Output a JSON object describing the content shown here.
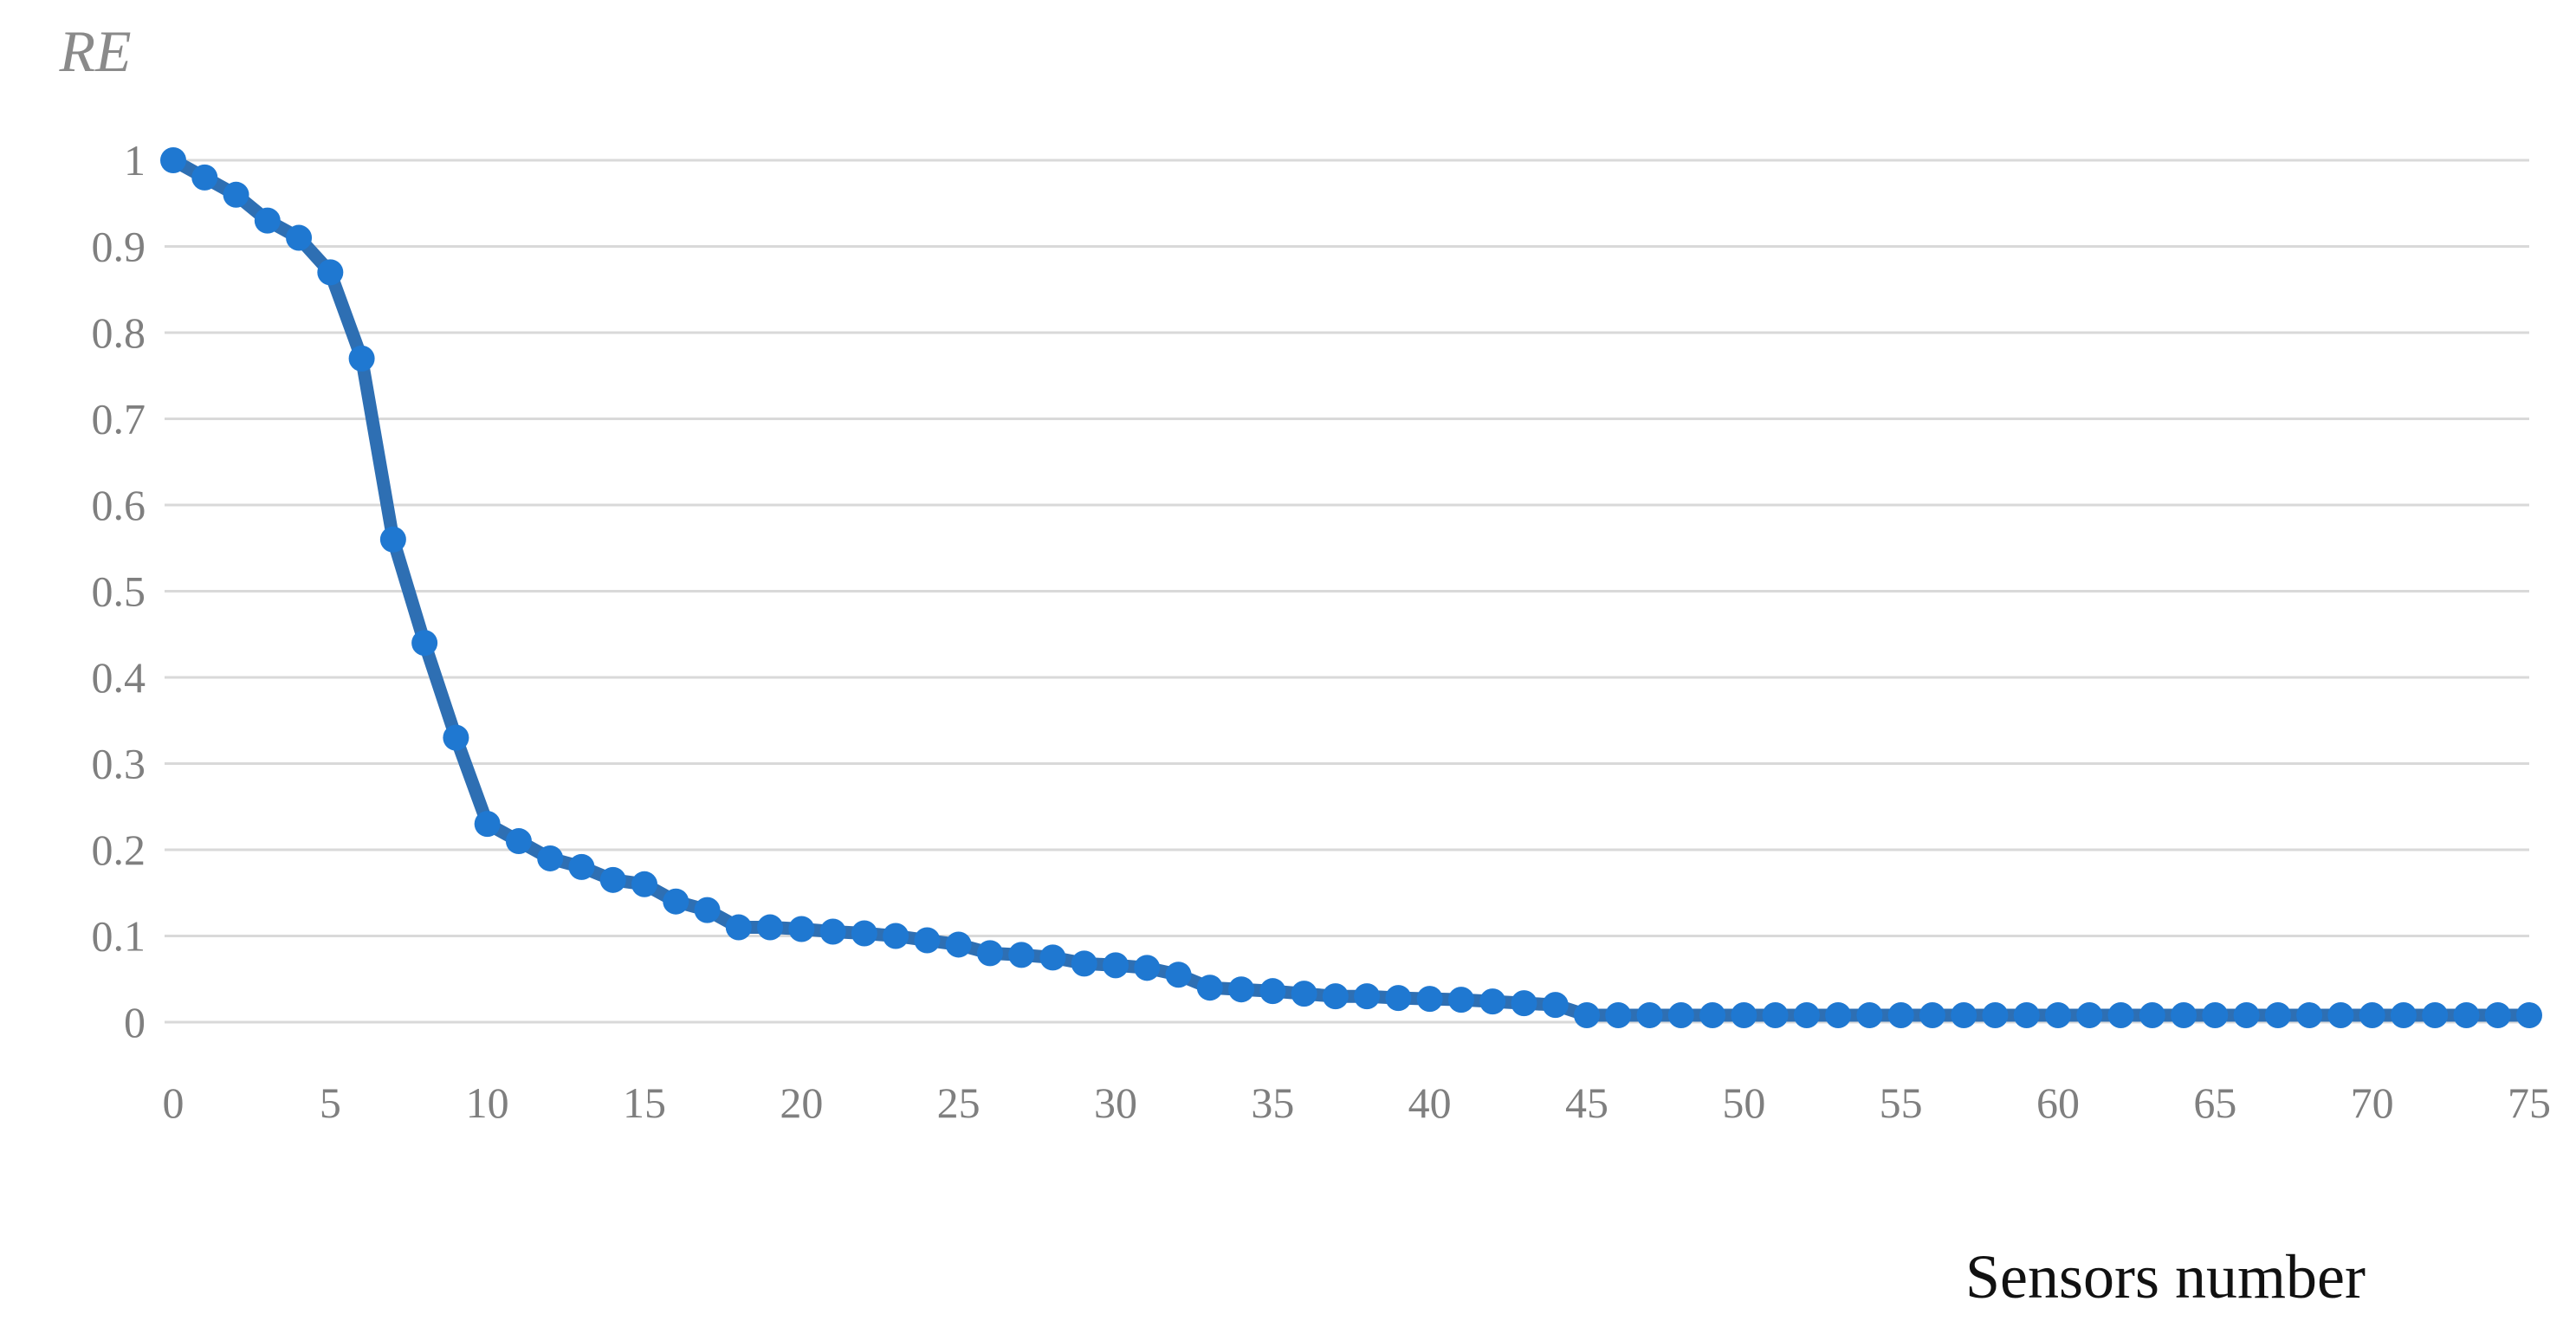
{
  "chart_data": {
    "type": "line",
    "title": "",
    "xlabel": "Sensors number",
    "ylabel": "RE",
    "xlim": [
      0,
      75
    ],
    "ylim": [
      0,
      1
    ],
    "x_ticks": [
      "0",
      "5",
      "10",
      "15",
      "20",
      "25",
      "30",
      "35",
      "40",
      "45",
      "50",
      "55",
      "60",
      "65",
      "70",
      "75"
    ],
    "y_ticks": [
      "0",
      "0.1",
      "0.2",
      "0.3",
      "0.4",
      "0.5",
      "0.6",
      "0.7",
      "0.8",
      "0.9",
      "1"
    ],
    "grid": true,
    "legend": "none",
    "colors": {
      "line": "#2e6fb3",
      "marker": "#1f78d1",
      "grid": "#d9d9d9",
      "tick_label": "#7f7f7f"
    },
    "series": [
      {
        "x": [
          0,
          1,
          2,
          3,
          4,
          5,
          6,
          7,
          8,
          9,
          10,
          11,
          12,
          13,
          14,
          15,
          16,
          17,
          18,
          19,
          20,
          21,
          22,
          23,
          24,
          25,
          26,
          27,
          28,
          29,
          30,
          31,
          32,
          33,
          34,
          35,
          36,
          37,
          38,
          39,
          40,
          41,
          42,
          43,
          44,
          45,
          46,
          47,
          48,
          49,
          50,
          51,
          52,
          53,
          54,
          55,
          56,
          57,
          58,
          59,
          60,
          61,
          62,
          63,
          64,
          65,
          66,
          67,
          68,
          69,
          70,
          71,
          72,
          73,
          74,
          75
        ],
        "values": [
          1.0,
          0.98,
          0.96,
          0.93,
          0.91,
          0.87,
          0.77,
          0.56,
          0.44,
          0.33,
          0.23,
          0.21,
          0.19,
          0.18,
          0.165,
          0.16,
          0.14,
          0.13,
          0.11,
          0.11,
          0.108,
          0.105,
          0.103,
          0.1,
          0.095,
          0.09,
          0.08,
          0.078,
          0.075,
          0.068,
          0.066,
          0.063,
          0.055,
          0.04,
          0.038,
          0.036,
          0.033,
          0.03,
          0.03,
          0.028,
          0.027,
          0.026,
          0.024,
          0.022,
          0.02,
          0.008,
          0.008,
          0.008,
          0.008,
          0.008,
          0.008,
          0.008,
          0.008,
          0.008,
          0.008,
          0.008,
          0.008,
          0.008,
          0.008,
          0.008,
          0.008,
          0.008,
          0.008,
          0.008,
          0.008,
          0.008,
          0.008,
          0.008,
          0.008,
          0.008,
          0.008,
          0.008,
          0.008,
          0.008,
          0.008,
          0.008
        ]
      }
    ]
  }
}
